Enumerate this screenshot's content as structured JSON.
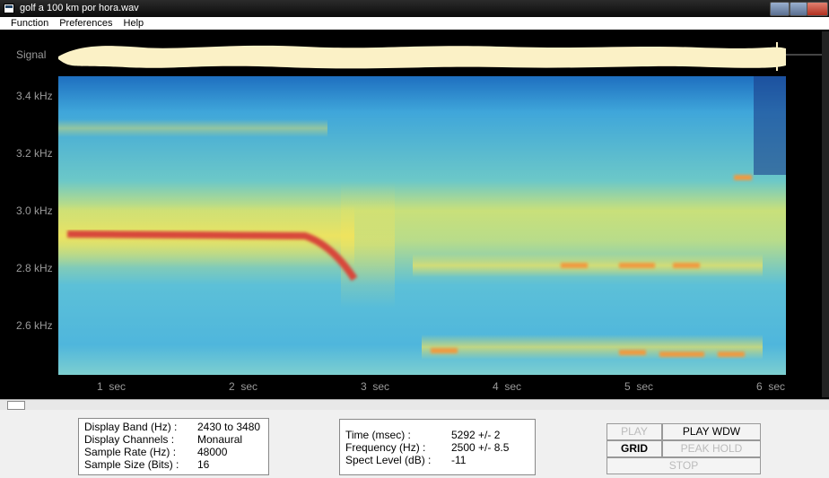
{
  "window": {
    "title": "golf a 100 km por hora.wav"
  },
  "menu": [
    "Function",
    "Preferences",
    "Help"
  ],
  "signal_label": "Signal",
  "frequency_labels": [
    "3.4 kHz",
    "3.2 kHz",
    "3.0 kHz",
    "2.8 kHz",
    "2.6 kHz"
  ],
  "time_labels": [
    "1  sec",
    "2  sec",
    "3  sec",
    "4  sec",
    "5  sec",
    "6  sec"
  ],
  "info_panel": {
    "rows": [
      {
        "label": "Display Band (Hz) :",
        "value": "2430 to 3480"
      },
      {
        "label": "Display Channels :",
        "value": "Monaural"
      },
      {
        "label": "Sample Rate (Hz) :",
        "value": "48000"
      },
      {
        "label": "Sample Size (Bits) :",
        "value": "16"
      }
    ]
  },
  "cursor_panel": {
    "rows": [
      {
        "label": "Time (msec) :",
        "value": "5292 +/- 2"
      },
      {
        "label": "Frequency (Hz) :",
        "value": "2500 +/- 8.5"
      },
      {
        "label": "Spect Level (dB) :",
        "value": "-11"
      }
    ]
  },
  "buttons": {
    "play": "PLAY",
    "play_window": "PLAY WDW",
    "grid": "GRID",
    "peak_hold": "PEAK HOLD",
    "stop": "STOP"
  }
}
